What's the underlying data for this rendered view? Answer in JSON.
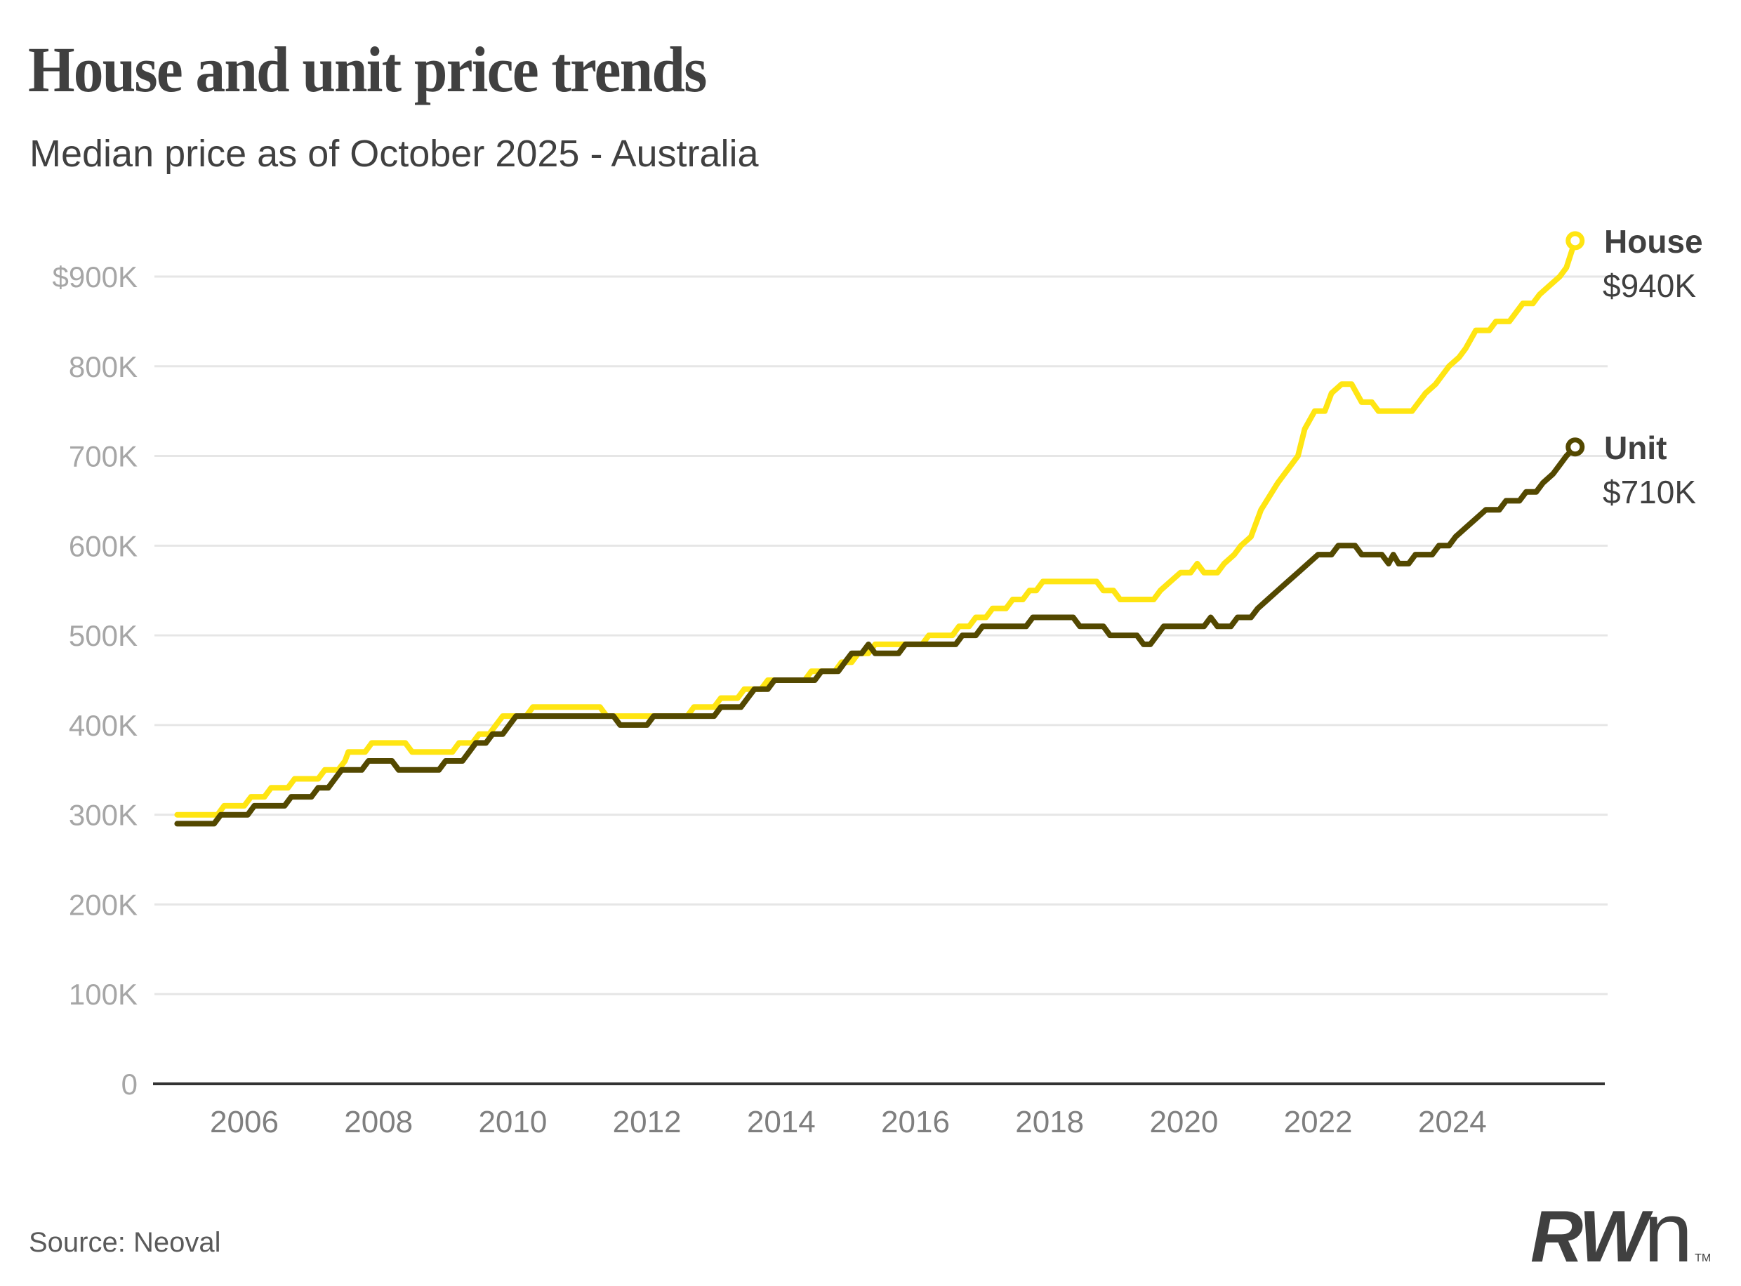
{
  "header": {
    "title": "House and unit price trends",
    "subtitle": "Median price as of October 2025 - Australia"
  },
  "footer": {
    "source": "Source: Neoval",
    "logo": {
      "rw": "RW",
      "n": "n",
      "tm": "TM"
    }
  },
  "chart_data": {
    "type": "line",
    "title": "House and unit price trends",
    "subtitle": "Median price as of October 2025 - Australia",
    "xlabel": "",
    "ylabel": "",
    "unit": "K AUD",
    "xlim": [
      2005,
      2025.83
    ],
    "ylim": [
      0,
      900
    ],
    "grid": true,
    "legend": "end-of-line labels, right",
    "yticks": [
      0,
      100,
      200,
      300,
      400,
      500,
      600,
      700,
      800,
      900
    ],
    "ytick_labels": [
      "0",
      "100K",
      "200K",
      "300K",
      "400K",
      "500K",
      "600K",
      "700K",
      "800K",
      "$900K"
    ],
    "xticks": [
      2006,
      2008,
      2010,
      2012,
      2014,
      2016,
      2018,
      2020,
      2022,
      2024
    ],
    "xtick_labels": [
      "2006",
      "2008",
      "2010",
      "2012",
      "2014",
      "2016",
      "2018",
      "2020",
      "2022",
      "2024"
    ],
    "series": [
      {
        "name": "House",
        "end_label": "House",
        "end_value_label": "$940K",
        "color": "#FFE512",
        "points": [
          [
            2005.0,
            300
          ],
          [
            2005.6,
            300
          ],
          [
            2005.7,
            310
          ],
          [
            2006.0,
            310
          ],
          [
            2006.1,
            320
          ],
          [
            2006.3,
            320
          ],
          [
            2006.4,
            330
          ],
          [
            2006.65,
            330
          ],
          [
            2006.75,
            340
          ],
          [
            2007.1,
            340
          ],
          [
            2007.2,
            350
          ],
          [
            2007.4,
            350
          ],
          [
            2007.5,
            360
          ],
          [
            2007.55,
            370
          ],
          [
            2007.8,
            370
          ],
          [
            2007.9,
            380
          ],
          [
            2008.4,
            380
          ],
          [
            2008.5,
            370
          ],
          [
            2009.1,
            370
          ],
          [
            2009.2,
            380
          ],
          [
            2009.4,
            380
          ],
          [
            2009.5,
            390
          ],
          [
            2009.65,
            390
          ],
          [
            2009.75,
            400
          ],
          [
            2009.85,
            410
          ],
          [
            2010.2,
            410
          ],
          [
            2010.3,
            420
          ],
          [
            2011.3,
            420
          ],
          [
            2011.4,
            410
          ],
          [
            2012.6,
            410
          ],
          [
            2012.7,
            420
          ],
          [
            2013.0,
            420
          ],
          [
            2013.1,
            430
          ],
          [
            2013.35,
            430
          ],
          [
            2013.45,
            440
          ],
          [
            2013.7,
            440
          ],
          [
            2013.8,
            450
          ],
          [
            2014.35,
            450
          ],
          [
            2014.45,
            460
          ],
          [
            2014.8,
            460
          ],
          [
            2014.9,
            470
          ],
          [
            2015.05,
            470
          ],
          [
            2015.15,
            480
          ],
          [
            2015.3,
            480
          ],
          [
            2015.4,
            490
          ],
          [
            2016.1,
            490
          ],
          [
            2016.2,
            500
          ],
          [
            2016.55,
            500
          ],
          [
            2016.65,
            510
          ],
          [
            2016.8,
            510
          ],
          [
            2016.9,
            520
          ],
          [
            2017.05,
            520
          ],
          [
            2017.15,
            530
          ],
          [
            2017.35,
            530
          ],
          [
            2017.45,
            540
          ],
          [
            2017.6,
            540
          ],
          [
            2017.7,
            550
          ],
          [
            2017.8,
            550
          ],
          [
            2017.9,
            560
          ],
          [
            2018.7,
            560
          ],
          [
            2018.8,
            550
          ],
          [
            2018.95,
            550
          ],
          [
            2019.05,
            540
          ],
          [
            2019.55,
            540
          ],
          [
            2019.65,
            550
          ],
          [
            2019.8,
            560
          ],
          [
            2019.95,
            570
          ],
          [
            2020.1,
            570
          ],
          [
            2020.2,
            580
          ],
          [
            2020.3,
            570
          ],
          [
            2020.5,
            570
          ],
          [
            2020.6,
            580
          ],
          [
            2020.75,
            590
          ],
          [
            2020.85,
            600
          ],
          [
            2021.0,
            610
          ],
          [
            2021.15,
            640
          ],
          [
            2021.4,
            670
          ],
          [
            2021.7,
            700
          ],
          [
            2021.8,
            730
          ],
          [
            2021.95,
            750
          ],
          [
            2022.1,
            750
          ],
          [
            2022.2,
            770
          ],
          [
            2022.35,
            780
          ],
          [
            2022.5,
            780
          ],
          [
            2022.65,
            760
          ],
          [
            2022.8,
            760
          ],
          [
            2022.9,
            750
          ],
          [
            2023.4,
            750
          ],
          [
            2023.5,
            760
          ],
          [
            2023.6,
            770
          ],
          [
            2023.75,
            780
          ],
          [
            2023.85,
            790
          ],
          [
            2023.95,
            800
          ],
          [
            2024.1,
            810
          ],
          [
            2024.2,
            820
          ],
          [
            2024.35,
            840
          ],
          [
            2024.55,
            840
          ],
          [
            2024.65,
            850
          ],
          [
            2024.85,
            850
          ],
          [
            2024.95,
            860
          ],
          [
            2025.05,
            870
          ],
          [
            2025.2,
            870
          ],
          [
            2025.3,
            880
          ],
          [
            2025.45,
            890
          ],
          [
            2025.6,
            900
          ],
          [
            2025.7,
            910
          ],
          [
            2025.83,
            940
          ]
        ]
      },
      {
        "name": "Unit",
        "end_label": "Unit",
        "end_value_label": "$710K",
        "color": "#534800",
        "points": [
          [
            2005.0,
            290
          ],
          [
            2005.55,
            290
          ],
          [
            2005.65,
            300
          ],
          [
            2006.05,
            300
          ],
          [
            2006.15,
            310
          ],
          [
            2006.6,
            310
          ],
          [
            2006.7,
            320
          ],
          [
            2007.0,
            320
          ],
          [
            2007.1,
            330
          ],
          [
            2007.25,
            330
          ],
          [
            2007.35,
            340
          ],
          [
            2007.45,
            350
          ],
          [
            2007.75,
            350
          ],
          [
            2007.85,
            360
          ],
          [
            2008.2,
            360
          ],
          [
            2008.3,
            350
          ],
          [
            2008.9,
            350
          ],
          [
            2009.0,
            360
          ],
          [
            2009.25,
            360
          ],
          [
            2009.35,
            370
          ],
          [
            2009.45,
            380
          ],
          [
            2009.6,
            380
          ],
          [
            2009.7,
            390
          ],
          [
            2009.85,
            390
          ],
          [
            2009.95,
            400
          ],
          [
            2010.05,
            410
          ],
          [
            2011.5,
            410
          ],
          [
            2011.6,
            400
          ],
          [
            2012.0,
            400
          ],
          [
            2012.1,
            410
          ],
          [
            2013.0,
            410
          ],
          [
            2013.1,
            420
          ],
          [
            2013.4,
            420
          ],
          [
            2013.5,
            430
          ],
          [
            2013.6,
            440
          ],
          [
            2013.8,
            440
          ],
          [
            2013.9,
            450
          ],
          [
            2014.5,
            450
          ],
          [
            2014.6,
            460
          ],
          [
            2014.85,
            460
          ],
          [
            2014.95,
            470
          ],
          [
            2015.05,
            480
          ],
          [
            2015.2,
            480
          ],
          [
            2015.3,
            490
          ],
          [
            2015.4,
            480
          ],
          [
            2015.75,
            480
          ],
          [
            2015.85,
            490
          ],
          [
            2016.6,
            490
          ],
          [
            2016.7,
            500
          ],
          [
            2016.9,
            500
          ],
          [
            2017.0,
            510
          ],
          [
            2017.65,
            510
          ],
          [
            2017.75,
            520
          ],
          [
            2018.35,
            520
          ],
          [
            2018.45,
            510
          ],
          [
            2018.8,
            510
          ],
          [
            2018.9,
            500
          ],
          [
            2019.3,
            500
          ],
          [
            2019.4,
            490
          ],
          [
            2019.5,
            490
          ],
          [
            2019.6,
            500
          ],
          [
            2019.7,
            510
          ],
          [
            2020.3,
            510
          ],
          [
            2020.4,
            520
          ],
          [
            2020.5,
            510
          ],
          [
            2020.7,
            510
          ],
          [
            2020.8,
            520
          ],
          [
            2021.0,
            520
          ],
          [
            2021.1,
            530
          ],
          [
            2021.25,
            540
          ],
          [
            2021.4,
            550
          ],
          [
            2021.55,
            560
          ],
          [
            2021.7,
            570
          ],
          [
            2021.85,
            580
          ],
          [
            2022.0,
            590
          ],
          [
            2022.2,
            590
          ],
          [
            2022.3,
            600
          ],
          [
            2022.55,
            600
          ],
          [
            2022.65,
            590
          ],
          [
            2022.95,
            590
          ],
          [
            2023.05,
            580
          ],
          [
            2023.12,
            590
          ],
          [
            2023.2,
            580
          ],
          [
            2023.35,
            580
          ],
          [
            2023.45,
            590
          ],
          [
            2023.7,
            590
          ],
          [
            2023.8,
            600
          ],
          [
            2023.95,
            600
          ],
          [
            2024.05,
            610
          ],
          [
            2024.2,
            620
          ],
          [
            2024.35,
            630
          ],
          [
            2024.5,
            640
          ],
          [
            2024.7,
            640
          ],
          [
            2024.8,
            650
          ],
          [
            2025.0,
            650
          ],
          [
            2025.1,
            660
          ],
          [
            2025.25,
            660
          ],
          [
            2025.35,
            670
          ],
          [
            2025.5,
            680
          ],
          [
            2025.6,
            690
          ],
          [
            2025.7,
            700
          ],
          [
            2025.83,
            710
          ]
        ]
      }
    ],
    "annotations": [
      {
        "series": "House",
        "label": "House",
        "value": "$940K"
      },
      {
        "series": "Unit",
        "label": "Unit",
        "value": "$710K"
      }
    ],
    "source": "Source: Neoval"
  }
}
